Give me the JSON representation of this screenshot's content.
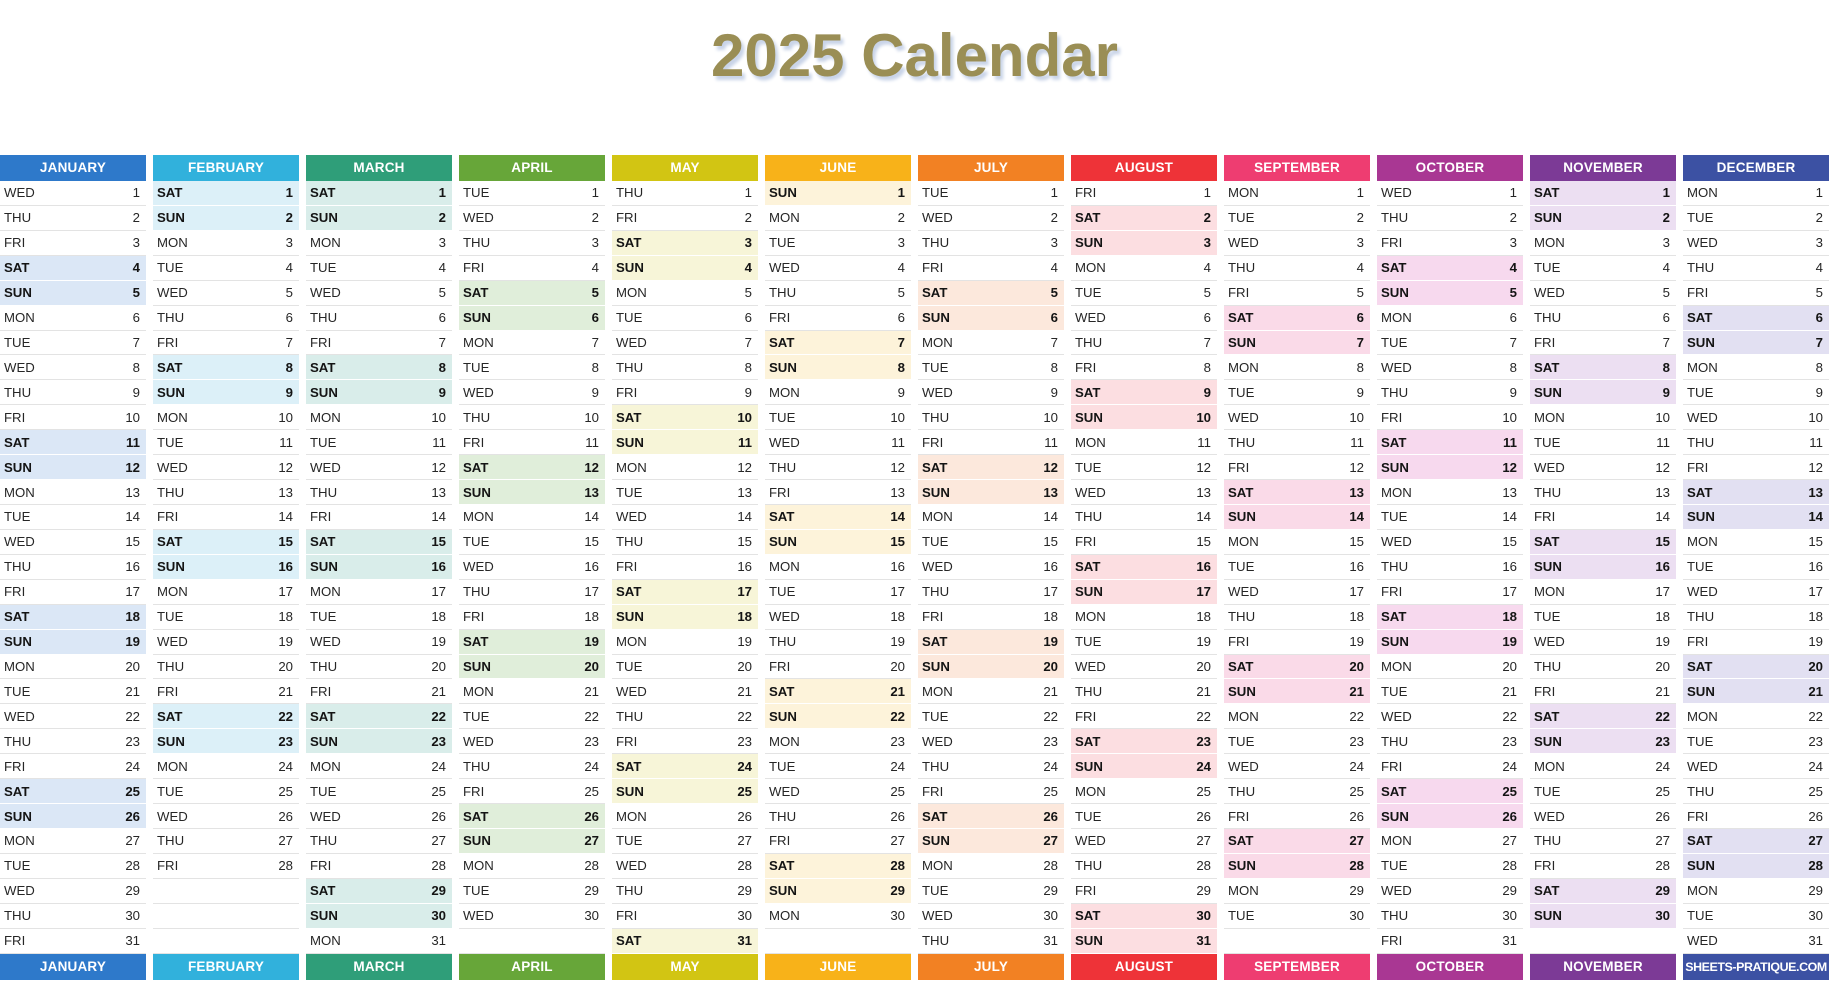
{
  "title": {
    "text": "2025 Calendar",
    "color": "#9a8e55"
  },
  "weekday_labels": [
    "MON",
    "TUE",
    "WED",
    "THU",
    "FRI",
    "SAT",
    "SUN"
  ],
  "weekend_days": [
    "SAT",
    "SUN"
  ],
  "row_count": 31,
  "months": [
    {
      "label": "JANUARY",
      "start_day": "WED",
      "days": 31,
      "header_color": "#2e79ca",
      "weekend_color": "#dbe7f6"
    },
    {
      "label": "FEBRUARY",
      "start_day": "SAT",
      "days": 28,
      "header_color": "#31b1dc",
      "weekend_color": "#dcf0f8"
    },
    {
      "label": "MARCH",
      "start_day": "SAT",
      "days": 31,
      "header_color": "#2f9e79",
      "weekend_color": "#d9edea"
    },
    {
      "label": "APRIL",
      "start_day": "TUE",
      "days": 30,
      "header_color": "#67a639",
      "weekend_color": "#e0eeda"
    },
    {
      "label": "MAY",
      "start_day": "THU",
      "days": 31,
      "header_color": "#d2c513",
      "weekend_color": "#f7f5d8"
    },
    {
      "label": "JUNE",
      "start_day": "SUN",
      "days": 30,
      "header_color": "#f8b219",
      "weekend_color": "#fdf3da"
    },
    {
      "label": "JULY",
      "start_day": "TUE",
      "days": 31,
      "header_color": "#f28123",
      "weekend_color": "#fce8dc"
    },
    {
      "label": "AUGUST",
      "start_day": "FRI",
      "days": 31,
      "header_color": "#ee3338",
      "weekend_color": "#fcdee1"
    },
    {
      "label": "SEPTEMBER",
      "start_day": "MON",
      "days": 30,
      "header_color": "#ee3d71",
      "weekend_color": "#fadae8"
    },
    {
      "label": "OCTOBER",
      "start_day": "WED",
      "days": 31,
      "header_color": "#a93793",
      "weekend_color": "#f7d9ee"
    },
    {
      "label": "NOVEMBER",
      "start_day": "SAT",
      "days": 30,
      "header_color": "#7c3a96",
      "weekend_color": "#ecdff2"
    },
    {
      "label": "DECEMBER",
      "start_day": "MON",
      "days": 31,
      "header_color": "#3c51a3",
      "weekend_color": "#e2e0f2"
    }
  ],
  "footer": {
    "brand": "SHEETS-PRATIQUE.COM",
    "brand_color": "#3c51a3"
  }
}
